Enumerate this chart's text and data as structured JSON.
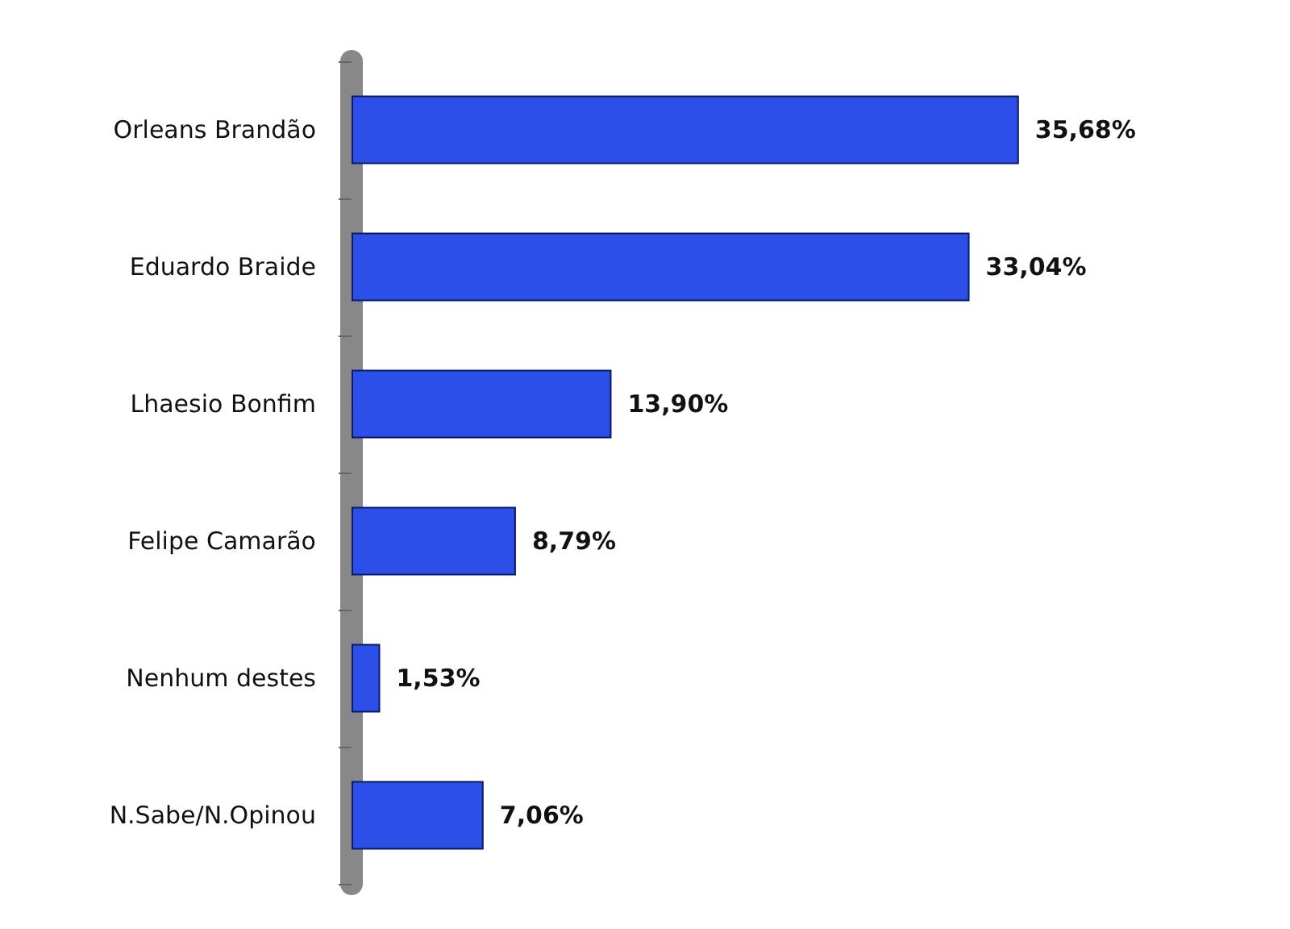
{
  "chart_data": {
    "type": "bar",
    "orientation": "horizontal",
    "categories": [
      "Orleans Brandão",
      "Eduardo Braide",
      "Lhaesio Bonfim",
      "Felipe Camarão",
      "Nenhum destes",
      "N.Sabe/N.Opinou"
    ],
    "values": [
      35.68,
      33.04,
      13.9,
      8.79,
      1.53,
      7.06
    ],
    "value_labels": [
      "35,68%",
      "33,04%",
      "13,90%",
      "8,79%",
      "1,53%",
      "7,06%"
    ],
    "color": "#2b4fe8",
    "grid": false,
    "tick_labels": "y"
  }
}
